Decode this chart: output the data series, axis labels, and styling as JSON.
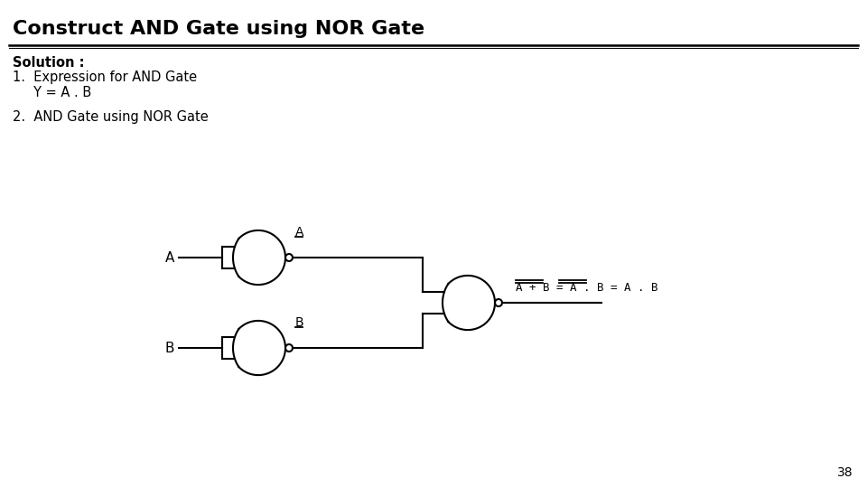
{
  "title": "Construct AND Gate using NOR Gate",
  "bg_color": "#ffffff",
  "text_color": "#000000",
  "solution_text": "Solution :",
  "item1_line1": "1.  Expression for AND Gate",
  "item1_line2": "     Y = A . B",
  "item2": "2.  AND Gate using NOR Gate",
  "page_number": "38",
  "label_A": "A",
  "label_B": "B",
  "label_Abar": "A",
  "label_Bbar": "B"
}
